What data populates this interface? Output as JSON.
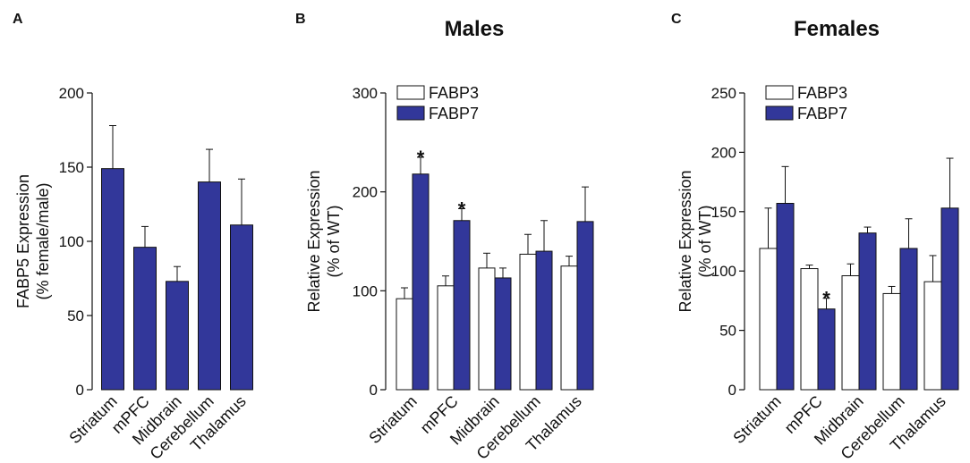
{
  "colors": {
    "fabp7": "#32379a",
    "fabp3": "#ffffff",
    "stroke": "#111111"
  },
  "chart_data": [
    {
      "panel": "A",
      "type": "bar",
      "title": "",
      "ylabel_line1": "FABP5 Expression",
      "ylabel_line2": "(% female/male)",
      "xlabel": "",
      "ylim": [
        0,
        200
      ],
      "yticks": [
        0,
        50,
        100,
        150,
        200
      ],
      "categories": [
        "Striatum",
        "mPFC",
        "Midbrain",
        "Cerebellum",
        "Thalamus"
      ],
      "series": [
        {
          "name": "FABP5",
          "color": "#32379a",
          "values": [
            149,
            96,
            73,
            140,
            111
          ],
          "errors": [
            29,
            14,
            10,
            22,
            31
          ]
        }
      ],
      "legend": [],
      "significant": []
    },
    {
      "panel": "B",
      "type": "bar",
      "title": "Males",
      "ylabel_line1": "Relative Expression",
      "ylabel_line2": "(% of WT)",
      "xlabel": "",
      "ylim": [
        0,
        300
      ],
      "yticks": [
        0,
        100,
        200,
        300
      ],
      "categories": [
        "Striatum",
        "mPFC",
        "Midbrain",
        "Cerebellum",
        "Thalamus"
      ],
      "series": [
        {
          "name": "FABP3",
          "color": "#ffffff",
          "values": [
            92,
            105,
            123,
            137,
            125
          ],
          "errors": [
            11,
            10,
            15,
            20,
            10
          ]
        },
        {
          "name": "FABP7",
          "color": "#32379a",
          "values": [
            218,
            171,
            113,
            140,
            170
          ],
          "errors": [
            17,
            12,
            10,
            31,
            35
          ]
        }
      ],
      "legend": [
        "FABP3",
        "FABP7"
      ],
      "significant": [
        {
          "series": 1,
          "category": 0,
          "mark": "*"
        },
        {
          "series": 1,
          "category": 1,
          "mark": "*"
        }
      ]
    },
    {
      "panel": "C",
      "type": "bar",
      "title": "Females",
      "ylabel_line1": "Relative Expression",
      "ylabel_line2": "(% of WT)",
      "xlabel": "",
      "ylim": [
        0,
        250
      ],
      "yticks": [
        0,
        50,
        100,
        150,
        200,
        250
      ],
      "categories": [
        "Striatum",
        "mPFC",
        "Midbrain",
        "Cerebellum",
        "Thalamus"
      ],
      "series": [
        {
          "name": "FABP3",
          "color": "#ffffff",
          "values": [
            119,
            102,
            96,
            81,
            91
          ],
          "errors": [
            34,
            3,
            10,
            6,
            22
          ]
        },
        {
          "name": "FABP7",
          "color": "#32379a",
          "values": [
            157,
            68,
            132,
            119,
            153
          ],
          "errors": [
            31,
            9,
            5,
            25,
            42
          ]
        }
      ],
      "legend": [
        "FABP3",
        "FABP7"
      ],
      "significant": [
        {
          "series": 1,
          "category": 1,
          "mark": "*"
        }
      ]
    }
  ]
}
